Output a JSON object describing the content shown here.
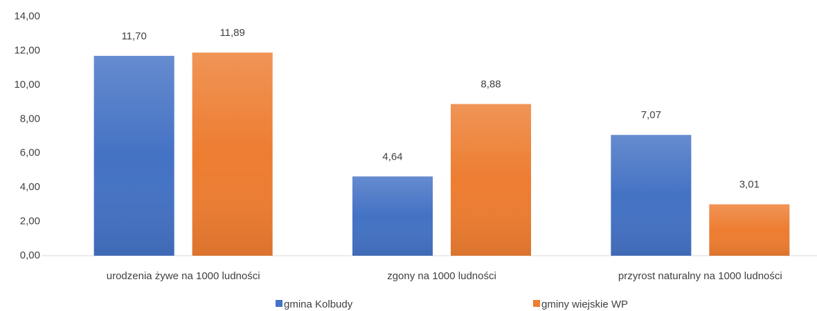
{
  "chart_data": {
    "type": "bar",
    "categories": [
      "urodzenia żywe na 1000 ludności",
      "zgony na 1000 ludności",
      "przyrost naturalny na 1000 ludności"
    ],
    "series": [
      {
        "name": "gmina Kolbudy",
        "color": "#4472c4",
        "values": [
          11.7,
          4.64,
          7.07
        ],
        "value_labels": [
          "11,70",
          "4,64",
          "7,07"
        ]
      },
      {
        "name": "gminy wiejskie WP",
        "color": "#ed7d31",
        "values": [
          11.89,
          8.88,
          3.01
        ],
        "value_labels": [
          "11,89",
          "8,88",
          "3,01"
        ]
      }
    ],
    "ylim": [
      0,
      14
    ],
    "yticks": [
      {
        "value": 0,
        "label": "0,00"
      },
      {
        "value": 2,
        "label": "2,00"
      },
      {
        "value": 4,
        "label": "4,00"
      },
      {
        "value": 6,
        "label": "6,00"
      },
      {
        "value": 8,
        "label": "8,00"
      },
      {
        "value": 10,
        "label": "10,00"
      },
      {
        "value": 12,
        "label": "12,00"
      },
      {
        "value": 14,
        "label": "14,00"
      }
    ],
    "grid": false,
    "legend": "bottom"
  }
}
